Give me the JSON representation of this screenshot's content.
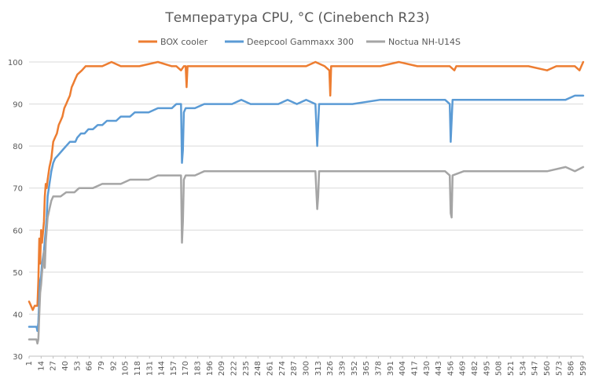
{
  "chart_data": {
    "type": "line",
    "title": "Температура CPU, °C (Cinebench R23)",
    "xlabel": "",
    "ylabel": "",
    "ylim": [
      30,
      100
    ],
    "yticks": [
      30,
      40,
      50,
      60,
      70,
      80,
      90,
      100
    ],
    "xlim": [
      1,
      599
    ],
    "x_tick_labels": [
      "1",
      "14",
      "27",
      "40",
      "53",
      "66",
      "79",
      "92",
      "105",
      "118",
      "131",
      "144",
      "157",
      "170",
      "183",
      "196",
      "209",
      "222",
      "235",
      "248",
      "261",
      "274",
      "287",
      "300",
      "313",
      "326",
      "339",
      "352",
      "365",
      "378",
      "391",
      "404",
      "417",
      "430",
      "443",
      "456",
      "469",
      "482",
      "495",
      "508",
      "521",
      "534",
      "547",
      "560",
      "573",
      "586",
      "599"
    ],
    "grid": true,
    "legend_position": "top",
    "series": [
      {
        "name": "BOX cooler",
        "color": "#ED7D31",
        "points": [
          [
            1,
            43
          ],
          [
            3,
            42
          ],
          [
            5,
            41
          ],
          [
            7,
            42
          ],
          [
            9,
            42
          ],
          [
            10,
            42
          ],
          [
            11,
            48
          ],
          [
            12,
            58
          ],
          [
            13,
            52
          ],
          [
            14,
            60
          ],
          [
            15,
            57
          ],
          [
            17,
            62
          ],
          [
            18,
            68
          ],
          [
            19,
            71
          ],
          [
            20,
            70
          ],
          [
            21,
            72
          ],
          [
            23,
            75
          ],
          [
            25,
            77
          ],
          [
            27,
            81
          ],
          [
            29,
            82
          ],
          [
            31,
            83
          ],
          [
            33,
            85
          ],
          [
            35,
            86
          ],
          [
            37,
            87
          ],
          [
            39,
            89
          ],
          [
            41,
            90
          ],
          [
            43,
            91
          ],
          [
            45,
            92
          ],
          [
            47,
            94
          ],
          [
            49,
            95
          ],
          [
            51,
            96
          ],
          [
            53,
            97
          ],
          [
            58,
            98
          ],
          [
            62,
            99
          ],
          [
            70,
            99
          ],
          [
            80,
            99
          ],
          [
            90,
            100
          ],
          [
            100,
            99
          ],
          [
            120,
            99
          ],
          [
            140,
            100
          ],
          [
            155,
            99
          ],
          [
            160,
            99
          ],
          [
            165,
            98
          ],
          [
            168,
            99
          ],
          [
            170,
            99
          ],
          [
            171,
            94
          ],
          [
            172,
            99
          ],
          [
            180,
            99
          ],
          [
            200,
            99
          ],
          [
            220,
            99
          ],
          [
            250,
            99
          ],
          [
            280,
            99
          ],
          [
            300,
            99
          ],
          [
            310,
            100
          ],
          [
            320,
            99
          ],
          [
            325,
            98
          ],
          [
            326,
            92
          ],
          [
            327,
            99
          ],
          [
            330,
            99
          ],
          [
            350,
            99
          ],
          [
            380,
            99
          ],
          [
            400,
            100
          ],
          [
            420,
            99
          ],
          [
            440,
            99
          ],
          [
            455,
            99
          ],
          [
            460,
            98
          ],
          [
            462,
            99
          ],
          [
            480,
            99
          ],
          [
            500,
            99
          ],
          [
            520,
            99
          ],
          [
            540,
            99
          ],
          [
            560,
            98
          ],
          [
            570,
            99
          ],
          [
            580,
            99
          ],
          [
            590,
            99
          ],
          [
            595,
            98
          ],
          [
            597,
            99
          ],
          [
            599,
            100
          ]
        ]
      },
      {
        "name": "Deepcool Gammaxx 300",
        "color": "#5B9BD5",
        "points": [
          [
            1,
            37
          ],
          [
            5,
            37
          ],
          [
            9,
            37
          ],
          [
            10,
            36
          ],
          [
            11,
            38
          ],
          [
            12,
            44
          ],
          [
            13,
            48
          ],
          [
            14,
            49
          ],
          [
            15,
            52
          ],
          [
            17,
            55
          ],
          [
            19,
            60
          ],
          [
            20,
            63
          ],
          [
            21,
            68
          ],
          [
            23,
            71
          ],
          [
            25,
            74
          ],
          [
            27,
            76
          ],
          [
            29,
            77
          ],
          [
            33,
            78
          ],
          [
            37,
            79
          ],
          [
            41,
            80
          ],
          [
            45,
            81
          ],
          [
            51,
            81
          ],
          [
            53,
            82
          ],
          [
            57,
            83
          ],
          [
            61,
            83
          ],
          [
            65,
            84
          ],
          [
            70,
            84
          ],
          [
            75,
            85
          ],
          [
            80,
            85
          ],
          [
            85,
            86
          ],
          [
            90,
            86
          ],
          [
            95,
            86
          ],
          [
            100,
            87
          ],
          [
            105,
            87
          ],
          [
            110,
            87
          ],
          [
            115,
            88
          ],
          [
            120,
            88
          ],
          [
            130,
            88
          ],
          [
            140,
            89
          ],
          [
            150,
            89
          ],
          [
            155,
            89
          ],
          [
            160,
            90
          ],
          [
            165,
            90
          ],
          [
            166,
            76
          ],
          [
            167,
            79
          ],
          [
            168,
            88
          ],
          [
            170,
            89
          ],
          [
            180,
            89
          ],
          [
            190,
            90
          ],
          [
            200,
            90
          ],
          [
            210,
            90
          ],
          [
            220,
            90
          ],
          [
            230,
            91
          ],
          [
            240,
            90
          ],
          [
            250,
            90
          ],
          [
            260,
            90
          ],
          [
            270,
            90
          ],
          [
            280,
            91
          ],
          [
            290,
            90
          ],
          [
            300,
            91
          ],
          [
            310,
            90
          ],
          [
            311,
            85
          ],
          [
            312,
            80
          ],
          [
            313,
            85
          ],
          [
            314,
            90
          ],
          [
            330,
            90
          ],
          [
            350,
            90
          ],
          [
            380,
            91
          ],
          [
            400,
            91
          ],
          [
            420,
            91
          ],
          [
            440,
            91
          ],
          [
            450,
            91
          ],
          [
            455,
            90
          ],
          [
            456,
            81
          ],
          [
            457,
            86
          ],
          [
            458,
            91
          ],
          [
            470,
            91
          ],
          [
            480,
            91
          ],
          [
            500,
            91
          ],
          [
            520,
            91
          ],
          [
            540,
            91
          ],
          [
            560,
            91
          ],
          [
            580,
            91
          ],
          [
            590,
            92
          ],
          [
            599,
            92
          ]
        ]
      },
      {
        "name": "Noctua NH-U14S",
        "color": "#A5A5A5",
        "points": [
          [
            1,
            34
          ],
          [
            5,
            34
          ],
          [
            9,
            34
          ],
          [
            10,
            33
          ],
          [
            11,
            34
          ],
          [
            12,
            40
          ],
          [
            13,
            45
          ],
          [
            14,
            47
          ],
          [
            15,
            50
          ],
          [
            16,
            52
          ],
          [
            17,
            55
          ],
          [
            18,
            51
          ],
          [
            19,
            57
          ],
          [
            20,
            60
          ],
          [
            21,
            63
          ],
          [
            23,
            65
          ],
          [
            25,
            67
          ],
          [
            27,
            68
          ],
          [
            31,
            68
          ],
          [
            35,
            68
          ],
          [
            41,
            69
          ],
          [
            45,
            69
          ],
          [
            50,
            69
          ],
          [
            55,
            70
          ],
          [
            60,
            70
          ],
          [
            70,
            70
          ],
          [
            80,
            71
          ],
          [
            90,
            71
          ],
          [
            100,
            71
          ],
          [
            110,
            72
          ],
          [
            120,
            72
          ],
          [
            130,
            72
          ],
          [
            140,
            73
          ],
          [
            150,
            73
          ],
          [
            155,
            73
          ],
          [
            160,
            73
          ],
          [
            165,
            73
          ],
          [
            166,
            57
          ],
          [
            167,
            62
          ],
          [
            168,
            72
          ],
          [
            170,
            73
          ],
          [
            180,
            73
          ],
          [
            190,
            74
          ],
          [
            200,
            74
          ],
          [
            220,
            74
          ],
          [
            240,
            74
          ],
          [
            260,
            74
          ],
          [
            280,
            74
          ],
          [
            300,
            74
          ],
          [
            310,
            74
          ],
          [
            312,
            65
          ],
          [
            313,
            68
          ],
          [
            314,
            74
          ],
          [
            330,
            74
          ],
          [
            350,
            74
          ],
          [
            370,
            74
          ],
          [
            390,
            74
          ],
          [
            410,
            74
          ],
          [
            430,
            74
          ],
          [
            450,
            74
          ],
          [
            455,
            73
          ],
          [
            456,
            64
          ],
          [
            457,
            63
          ],
          [
            458,
            73
          ],
          [
            470,
            74
          ],
          [
            480,
            74
          ],
          [
            500,
            74
          ],
          [
            520,
            74
          ],
          [
            540,
            74
          ],
          [
            560,
            74
          ],
          [
            580,
            75
          ],
          [
            590,
            74
          ],
          [
            599,
            75
          ]
        ]
      }
    ]
  }
}
